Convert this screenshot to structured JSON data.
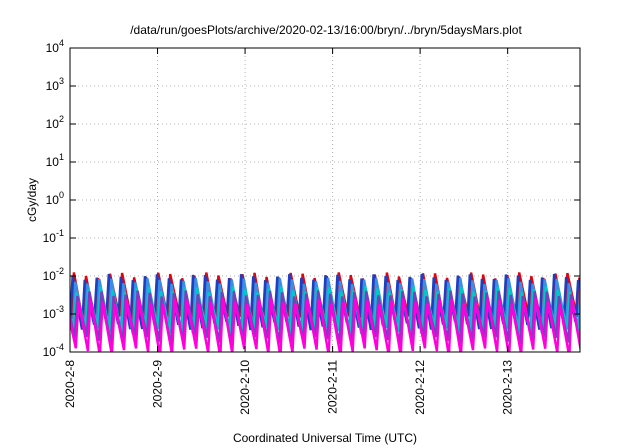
{
  "chart_data": {
    "type": "line",
    "title": "/data/run/goesPlots/archive/2020-02-13/16:00/bryn/../bryn/5daysMars.plot",
    "xlabel": "Coordinated Universal Time (UTC)",
    "ylabel": "cGy/day",
    "y_scale": "log",
    "ylim": [
      0.0001,
      10000
    ],
    "y_ticks": [
      {
        "value": 0.0001,
        "base": "10",
        "exp": "-4"
      },
      {
        "value": 0.001,
        "base": "10",
        "exp": "-3"
      },
      {
        "value": 0.01,
        "base": "10",
        "exp": "-2"
      },
      {
        "value": 0.1,
        "base": "10",
        "exp": "-1"
      },
      {
        "value": 1,
        "base": "10",
        "exp": "0"
      },
      {
        "value": 10,
        "base": "10",
        "exp": "1"
      },
      {
        "value": 100,
        "base": "10",
        "exp": "2"
      },
      {
        "value": 1000,
        "base": "10",
        "exp": "3"
      },
      {
        "value": 10000,
        "base": "10",
        "exp": "4"
      }
    ],
    "xlim": [
      "2020-02-08 00:00",
      "2020-02-13 19:50"
    ],
    "x_ticks": [
      {
        "value": "2020-02-08 00:00",
        "label": "2020-2-8"
      },
      {
        "value": "2020-02-09 00:00",
        "label": "2020-2-9"
      },
      {
        "value": "2020-02-10 00:00",
        "label": "2020-2-10"
      },
      {
        "value": "2020-02-11 00:00",
        "label": "2020-2-11"
      },
      {
        "value": "2020-02-12 00:00",
        "label": "2020-2-12"
      },
      {
        "value": "2020-02-13 00:00",
        "label": "2020-2-13"
      }
    ],
    "grid": true,
    "legend": "none",
    "series": [
      {
        "color": "#e8000b",
        "peak": 0.0105,
        "trough": 0.0007,
        "offset_hours": 0.35
      },
      {
        "color": "#1f3fbf",
        "peak": 0.0095,
        "trough": 0.0005,
        "offset_hours": 0.0
      },
      {
        "color": "#3a8ee6",
        "peak": 0.0075,
        "trough": 0.0004,
        "offset_hours": 0.7
      },
      {
        "color": "#00c8c8",
        "peak": 0.0045,
        "trough": 0.00035,
        "offset_hours": 1.0
      },
      {
        "color": "#7a3fbf",
        "peak": 0.0035,
        "trough": 0.0002,
        "offset_hours": 1.3
      },
      {
        "color": "#ff00dd",
        "peak": 0.0022,
        "trough": 0.0001,
        "offset_hours": 1.6
      }
    ],
    "sawtooth_period_hours": 3.3
  }
}
